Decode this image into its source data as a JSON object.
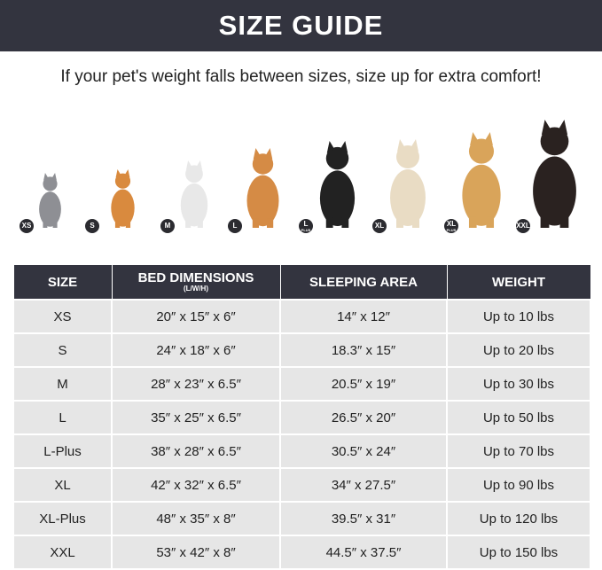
{
  "header": {
    "title": "SIZE GUIDE"
  },
  "subtitle": "If your pet's weight falls between sizes, size up for extra comfort!",
  "pets": [
    {
      "badge": "XS",
      "sub": "",
      "animal": "cat",
      "color": "#8e8f94",
      "height": 62
    },
    {
      "badge": "S",
      "sub": "",
      "animal": "pomeranian",
      "color": "#d98a3e",
      "height": 66
    },
    {
      "badge": "M",
      "sub": "",
      "animal": "french-bulldog",
      "color": "#e8e8e8",
      "height": 76
    },
    {
      "badge": "L",
      "sub": "",
      "animal": "shiba-inu",
      "color": "#d58b45",
      "height": 90
    },
    {
      "badge": "L",
      "sub": "PLUS",
      "animal": "border-collie",
      "color": "#222222",
      "height": 98
    },
    {
      "badge": "XL",
      "sub": "",
      "animal": "labrador",
      "color": "#e9dcc4",
      "height": 100
    },
    {
      "badge": "XL",
      "sub": "PLUS",
      "animal": "golden-retriever",
      "color": "#d9a45a",
      "height": 108
    },
    {
      "badge": "XXL",
      "sub": "",
      "animal": "doberman",
      "color": "#2a2220",
      "height": 122
    }
  ],
  "table": {
    "headers": [
      {
        "label": "SIZE",
        "sub": ""
      },
      {
        "label": "BED DIMENSIONS",
        "sub": "(L/W/H)"
      },
      {
        "label": "SLEEPING AREA",
        "sub": ""
      },
      {
        "label": "WEIGHT",
        "sub": ""
      }
    ],
    "rows": [
      [
        "XS",
        "20″ x 15″ x 6″",
        "14″ x 12″",
        "Up to 10 lbs"
      ],
      [
        "S",
        "24″ x 18″ x 6″",
        "18.3″ x 15″",
        "Up to 20 lbs"
      ],
      [
        "M",
        "28″ x 23″ x 6.5″",
        "20.5″ x 19″",
        "Up to 30 lbs"
      ],
      [
        "L",
        "35″ x 25″ x 6.5″",
        "26.5″ x 20″",
        "Up to 50 lbs"
      ],
      [
        "L-Plus",
        "38″ x 28″ x 6.5″",
        "30.5″ x 24″",
        "Up to 70 lbs"
      ],
      [
        "XL",
        "42″ x 32″ x 6.5″",
        "34″ x 27.5″",
        "Up to 90 lbs"
      ],
      [
        "XL-Plus",
        "48″ x 35″ x 8″",
        "39.5″ x 31″",
        "Up to 120 lbs"
      ],
      [
        "XXL",
        "53″ x 42″ x 8″",
        "44.5″ x 37.5″",
        "Up to 150 lbs"
      ]
    ]
  }
}
